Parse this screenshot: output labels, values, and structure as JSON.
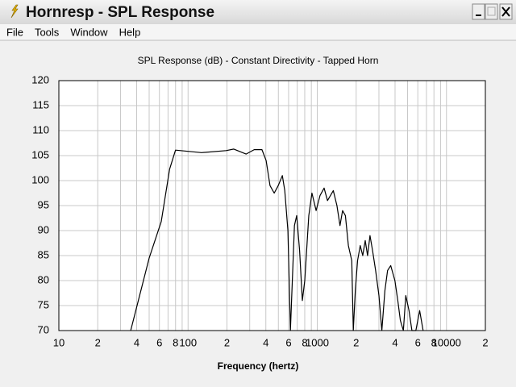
{
  "window": {
    "title": "Hornresp - SPL Response",
    "menu": [
      "File",
      "Tools",
      "Window",
      "Help"
    ]
  },
  "chart_data": {
    "type": "line",
    "title": "SPL Response (dB) - Constant Directivity - Tapped Horn",
    "x_label": "Frequency (hertz)",
    "log_x": true,
    "grid": true,
    "xlim": [
      10,
      20000
    ],
    "ylim": [
      70,
      120
    ],
    "xticks": [
      10,
      {
        "value": 20,
        "label": "2"
      },
      {
        "value": 40,
        "label": "4"
      },
      {
        "value": 60,
        "label": "6"
      },
      {
        "value": 80,
        "label": "8"
      },
      100,
      {
        "value": 200,
        "label": "2"
      },
      {
        "value": 400,
        "label": "4"
      },
      {
        "value": 600,
        "label": "6"
      },
      {
        "value": 800,
        "label": "8"
      },
      1000,
      {
        "value": 2000,
        "label": "2"
      },
      {
        "value": 4000,
        "label": "4"
      },
      {
        "value": 6000,
        "label": "6"
      },
      {
        "value": 8000,
        "label": "8"
      },
      10000,
      {
        "value": 20000,
        "label": "2"
      }
    ],
    "xminorticks": [
      30,
      50,
      70,
      90,
      300,
      500,
      700,
      900,
      3000,
      5000,
      7000,
      9000
    ],
    "yticks": [
      70,
      75,
      80,
      85,
      90,
      95,
      100,
      105,
      110,
      115,
      120
    ],
    "series": [
      {
        "color": "#000000",
        "x": [
          36,
          50,
          62,
          72,
          80,
          127,
          197,
          226,
          281,
          325,
          373,
          402,
          431,
          464,
          499,
          537,
          560,
          593,
          620,
          666,
          693,
          730,
          767,
          800,
          860,
          910,
          980,
          1050,
          1130,
          1200,
          1330,
          1420,
          1500,
          1570,
          1650,
          1740,
          1850,
          1900,
          1970,
          2050,
          2150,
          2250,
          2350,
          2450,
          2560,
          2680,
          2830,
          3000,
          3160,
          3340,
          3500,
          3700,
          3990,
          4200,
          4400,
          4640,
          4840,
          5130,
          5400,
          5800,
          6200,
          6600
        ],
        "values": [
          70,
          84.5,
          91.8,
          102.3,
          106.1,
          105.6,
          106,
          106.3,
          105.3,
          106.2,
          106.2,
          104,
          99,
          97.5,
          99,
          101,
          98,
          90,
          70,
          91,
          93,
          86,
          76,
          80,
          93,
          97.5,
          94,
          97,
          98.5,
          96,
          98,
          95,
          91,
          94,
          93,
          87,
          84,
          70,
          78,
          84,
          87,
          85,
          88,
          85,
          89,
          86,
          82,
          77,
          70,
          78,
          82,
          83,
          80,
          76,
          72,
          70,
          77,
          74,
          70,
          70,
          74,
          70
        ]
      }
    ]
  }
}
